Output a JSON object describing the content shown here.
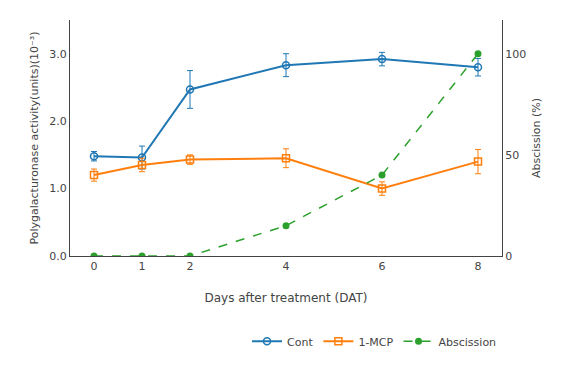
{
  "chart_data": {
    "type": "line",
    "x": [
      0,
      1,
      2,
      4,
      6,
      8
    ],
    "series": [
      {
        "name": "Cont",
        "values": [
          1.48,
          1.46,
          2.47,
          2.83,
          2.92,
          2.8
        ],
        "errors": [
          0.07,
          0.17,
          0.28,
          0.17,
          0.1,
          0.13
        ],
        "marker": "circle",
        "line_style": "solid"
      },
      {
        "name": "1-MCP",
        "values": [
          1.2,
          1.35,
          1.43,
          1.45,
          1.0,
          1.4
        ],
        "errors": [
          0.09,
          0.1,
          0.07,
          0.14,
          0.1,
          0.18
        ],
        "marker": "square",
        "line_style": "solid"
      },
      {
        "name": "Abscission",
        "values": [
          0,
          0,
          0,
          15,
          40,
          100
        ],
        "axis": "y2",
        "marker": "circle",
        "line_style": "dashed"
      }
    ],
    "xlabel": "Days after treatment (DAT)",
    "ylabel": "Polygalacturonase activity(units)(10⁻³)",
    "y2label": "Abscission (%)",
    "xlim": [
      -0.5,
      8.5
    ],
    "xticks": [
      0,
      1,
      2,
      4,
      6,
      8
    ],
    "ylim": [
      0,
      3.5
    ],
    "yticks": [
      {
        "value": 0,
        "label": "0.0"
      },
      {
        "value": 1.0,
        "label": "1.0"
      },
      {
        "value": 2.0,
        "label": "2.0"
      },
      {
        "value": 3.0,
        "label": "3.0"
      }
    ],
    "y2lim": [
      0,
      116.67
    ],
    "y2ticks": [
      0,
      50,
      100
    ],
    "grid": false,
    "legend": "lower right"
  }
}
